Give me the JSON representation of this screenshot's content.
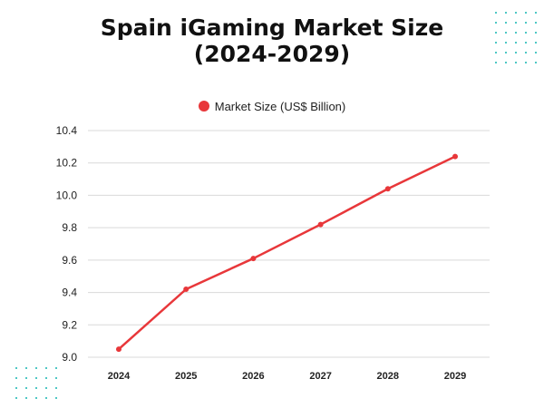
{
  "colors": {
    "series": "#e8373a",
    "grid": "#d9d9d9",
    "decor": "#16b5b1"
  },
  "chart_data": {
    "type": "line",
    "title": "Spain iGaming Market Size\n(2024-2029)",
    "title_lines": [
      "Spain iGaming Market Size",
      "(2024-2029)"
    ],
    "xlabel": "",
    "ylabel": "",
    "x": [
      "2024",
      "2025",
      "2026",
      "2027",
      "2028",
      "2029"
    ],
    "series": [
      {
        "name": "Market Size (US$ Billion)",
        "values": [
          9.05,
          9.42,
          9.61,
          9.82,
          10.04,
          10.24
        ]
      }
    ],
    "ylim": [
      9.0,
      10.4
    ],
    "yticks": [
      "9.0",
      "9.2",
      "9.4",
      "9.6",
      "9.8",
      "10.0",
      "10.2",
      "10.4"
    ],
    "grid": "horizontal",
    "legend_position": "top-center"
  }
}
